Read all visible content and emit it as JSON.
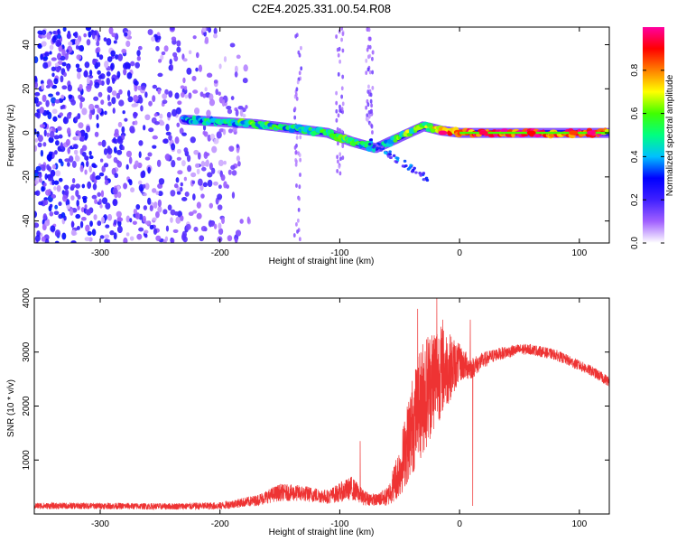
{
  "chart_data": [
    {
      "type": "heatmap",
      "title": "C2E4.2025.331.00.54.R08",
      "xlabel": "Height of straight line (km)",
      "ylabel": "Frequency (Hz)",
      "xlim": [
        -355,
        125
      ],
      "ylim": [
        -50,
        48
      ],
      "x_ticks": [
        -300,
        -200,
        -100,
        0,
        100
      ],
      "x_tick_labels": [
        "-300",
        "-200",
        "-100",
        "0",
        "100"
      ],
      "y_ticks": [
        -40,
        -20,
        0,
        20,
        40
      ],
      "y_tick_labels": [
        "-40",
        "-20",
        "0",
        "20",
        "40"
      ],
      "colorbar": {
        "label": "Normalized spectral amplitude",
        "range": [
          0,
          1
        ],
        "ticks": [
          0.0,
          0.2,
          0.4,
          0.6,
          0.8
        ],
        "tick_labels": [
          "0.0",
          "0.2",
          "0.4",
          "0.6",
          "0.8"
        ],
        "colors": [
          "#ffffff",
          "#a060ff",
          "#4020ff",
          "#0000ff",
          "#00c0ff",
          "#00ff80",
          "#40ff00",
          "#ffff00",
          "#ff8000",
          "#ff0000",
          "#ff00a0"
        ]
      },
      "noise_region": {
        "x_range": [
          -355,
          -175
        ],
        "freq_range": [
          -50,
          48
        ]
      },
      "noise_streaks": [
        {
          "x": -135,
          "freq_range": [
            -50,
            48
          ]
        },
        {
          "x": -100,
          "freq_range": [
            -20,
            48
          ]
        },
        {
          "x": -75,
          "freq_range": [
            0,
            48
          ]
        }
      ],
      "signal_track": [
        {
          "x": -230,
          "freq": 6,
          "amp": 0.35
        },
        {
          "x": -200,
          "freq": 5,
          "amp": 0.45
        },
        {
          "x": -170,
          "freq": 4,
          "amp": 0.5
        },
        {
          "x": -140,
          "freq": 2,
          "amp": 0.45
        },
        {
          "x": -110,
          "freq": 0,
          "amp": 0.5
        },
        {
          "x": -90,
          "freq": -4,
          "amp": 0.5
        },
        {
          "x": -70,
          "freq": -7,
          "amp": 0.45
        },
        {
          "x": -55,
          "freq": -12,
          "amp": 0.4
        },
        {
          "x": -45,
          "freq": 2,
          "amp": 0.55
        },
        {
          "x": -30,
          "freq": 3,
          "amp": 0.6
        },
        {
          "x": -15,
          "freq": 1,
          "amp": 0.7
        },
        {
          "x": 0,
          "freq": 0,
          "amp": 0.85
        },
        {
          "x": 30,
          "freq": 0,
          "amp": 0.9
        },
        {
          "x": 60,
          "freq": 0,
          "amp": 0.9
        },
        {
          "x": 90,
          "freq": 0,
          "amp": 0.85
        },
        {
          "x": 110,
          "freq": 0,
          "amp": 0.95
        },
        {
          "x": 125,
          "freq": 0,
          "amp": 0.8
        }
      ]
    },
    {
      "type": "line",
      "xlabel": "Height of straight line (km)",
      "ylabel": "SNR (10 * v/v)",
      "xlim": [
        -355,
        125
      ],
      "ylim": [
        0,
        4000
      ],
      "x_ticks": [
        -300,
        -200,
        -100,
        0,
        100
      ],
      "x_tick_labels": [
        "-300",
        "-200",
        "-100",
        "0",
        "100"
      ],
      "y_ticks": [
        1000,
        2000,
        3000,
        4000
      ],
      "y_tick_labels": [
        "1000",
        "2000",
        "3000",
        "4000"
      ],
      "series": [
        {
          "name": "SNR",
          "color": "#ee3333",
          "x": [
            -355,
            -300,
            -250,
            -200,
            -170,
            -150,
            -130,
            -110,
            -100,
            -90,
            -80,
            -70,
            -60,
            -50,
            -40,
            -30,
            -20,
            -10,
            0,
            10,
            20,
            30,
            40,
            50,
            60,
            70,
            80,
            90,
            100,
            110,
            125
          ],
          "y": [
            150,
            150,
            140,
            150,
            250,
            400,
            380,
            320,
            400,
            480,
            300,
            260,
            320,
            800,
            1600,
            2200,
            2600,
            2700,
            2800,
            2700,
            2850,
            2950,
            3000,
            3050,
            3050,
            3000,
            2950,
            2850,
            2750,
            2650,
            2450
          ],
          "spread": [
            60,
            60,
            60,
            70,
            100,
            160,
            150,
            130,
            180,
            220,
            140,
            110,
            180,
            500,
            900,
            1100,
            1000,
            700,
            350,
            200,
            150,
            120,
            110,
            100,
            100,
            100,
            100,
            100,
            100,
            100,
            100
          ],
          "spikes": [
            {
              "x": -83,
              "y": 1350
            },
            {
              "x": -35,
              "y": 3800
            },
            {
              "x": -19,
              "y": 4000
            },
            {
              "x": -14,
              "y": 3600
            },
            {
              "x": 9,
              "y": 3600
            },
            {
              "x": 11,
              "y": 150
            }
          ]
        }
      ]
    }
  ]
}
